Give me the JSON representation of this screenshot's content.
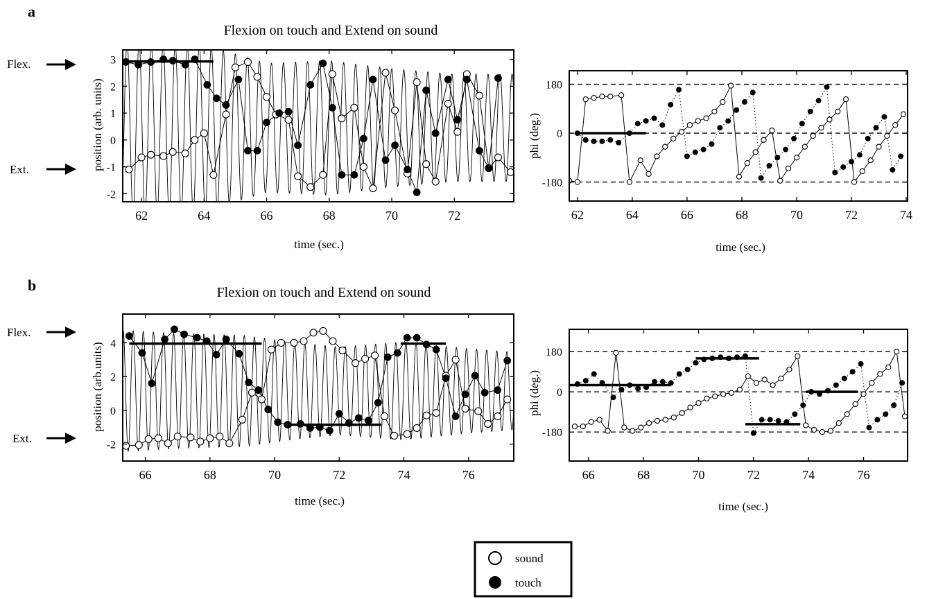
{
  "figure": {
    "panels": [
      {
        "label": "a",
        "title": "Flexion on touch and Extend on sound",
        "flex_label": "Flex.",
        "ext_label": "Ext.",
        "position_plot": {
          "ylabel": "position (arb. units)",
          "xlabel": "time (sec.)",
          "xlim": [
            61.4,
            73.9
          ],
          "ylim": [
            -2.3,
            3.35
          ],
          "xticks": [
            62,
            64,
            66,
            68,
            70,
            72
          ],
          "yticks": [
            -2,
            -1,
            0,
            1,
            2,
            3
          ]
        },
        "phase_plot": {
          "ylabel": "phi (deg.)",
          "xlabel": "time (sec.)",
          "xlim": [
            61.7,
            74.05
          ],
          "ylim": [
            -250,
            230
          ],
          "xticks": [
            62,
            64,
            66,
            68,
            70,
            72,
            74
          ],
          "yticks": [
            -180,
            0,
            180
          ]
        }
      },
      {
        "label": "b",
        "title": "Flexion on touch and Extend on sound",
        "flex_label": "Flex.",
        "ext_label": "Ext.",
        "position_plot": {
          "ylabel": "position (arb.units)",
          "xlabel": "time (sec.)",
          "xlim": [
            65.3,
            77.4
          ],
          "ylim": [
            -3.0,
            5.7
          ],
          "xticks": [
            66,
            68,
            70,
            72,
            74,
            76
          ],
          "yticks": [
            -2,
            0,
            2,
            4
          ]
        },
        "phase_plot": {
          "ylabel": "phi (deg.)",
          "xlabel": "time (sec.)",
          "xlim": [
            65.3,
            77.6
          ],
          "ylim": [
            -310,
            280
          ],
          "xticks": [
            66,
            68,
            70,
            72,
            74,
            76
          ],
          "yticks": [
            -180,
            0,
            180
          ]
        }
      }
    ],
    "legend": {
      "sound": "sound",
      "touch": "touch"
    }
  },
  "chart_data": [
    {
      "type": "line",
      "panel": "a-position",
      "xlabel": "time (sec.)",
      "ylabel": "position (arb. units)",
      "xlim": [
        61.4,
        73.9
      ],
      "ylim": [
        -2.3,
        3.35
      ],
      "continuous_trace": {
        "freq_hz": 2.6,
        "amplitude": [
          [
            61.4,
            3.2
          ],
          [
            64.0,
            3.1
          ],
          [
            66.0,
            2.4
          ],
          [
            68.0,
            2.5
          ],
          [
            70.0,
            2.2
          ],
          [
            72.0,
            2.0
          ],
          [
            73.9,
            2.0
          ]
        ],
        "offset": 0.45
      },
      "series": [
        {
          "name": "sound",
          "marker": "open-circle",
          "line": "solid",
          "x": [
            61.6,
            62.0,
            62.3,
            62.7,
            63.0,
            63.4,
            63.7,
            64.0,
            64.3,
            64.7,
            65.0,
            65.4,
            65.7,
            66.0,
            66.3,
            66.7,
            67.0,
            67.4,
            67.8,
            68.1,
            68.4,
            68.8,
            69.1,
            69.4,
            69.8,
            70.1,
            70.5,
            70.8,
            71.1,
            71.4,
            71.8,
            72.1,
            72.4,
            72.8,
            73.1,
            73.4,
            73.8
          ],
          "y": [
            -1.1,
            -0.65,
            -0.55,
            -0.6,
            -0.45,
            -0.5,
            0.0,
            0.25,
            -1.3,
            0.95,
            2.7,
            2.9,
            2.35,
            1.6,
            0.95,
            0.75,
            -1.35,
            -1.75,
            -1.3,
            2.45,
            0.8,
            1.2,
            -1.0,
            -1.8,
            2.5,
            1.1,
            -1.25,
            2.15,
            -0.9,
            -1.55,
            1.35,
            0.3,
            2.45,
            1.65,
            -1.05,
            -0.65,
            -1.2
          ]
        },
        {
          "name": "touch",
          "marker": "filled-circle",
          "line": "solid",
          "x": [
            61.5,
            61.9,
            62.3,
            62.7,
            63.0,
            63.4,
            63.7,
            64.1,
            64.4,
            64.7,
            65.1,
            65.4,
            65.7,
            66.0,
            66.4,
            66.7,
            67.0,
            67.4,
            67.8,
            68.1,
            68.4,
            68.8,
            69.1,
            69.4,
            69.8,
            70.1,
            70.5,
            70.8,
            71.1,
            71.4,
            71.8,
            72.1,
            72.4,
            72.8,
            73.1,
            73.4
          ],
          "y": [
            2.9,
            2.8,
            2.9,
            3.0,
            2.95,
            2.8,
            3.0,
            2.05,
            1.55,
            1.3,
            2.25,
            -0.4,
            -0.4,
            0.65,
            1.0,
            1.05,
            -0.2,
            2.05,
            2.85,
            1.2,
            -1.3,
            -1.3,
            0.05,
            2.25,
            -0.75,
            -0.2,
            -1.1,
            -1.95,
            1.85,
            0.25,
            2.25,
            0.75,
            2.25,
            -0.4,
            -1.05,
            2.3
          ]
        }
      ],
      "hlines": [
        {
          "y": 2.92,
          "x": [
            61.5,
            64.3
          ]
        }
      ]
    },
    {
      "type": "line",
      "panel": "a-phase",
      "xlabel": "time (sec.)",
      "ylabel": "phi (deg.)",
      "xlim": [
        61.7,
        74.05
      ],
      "ylim": [
        -250,
        230
      ],
      "reference_lines": [
        180,
        0,
        -180
      ],
      "series": [
        {
          "name": "sound",
          "marker": "open-circle",
          "line": "solid",
          "x": [
            61.7,
            62.0,
            62.3,
            62.6,
            62.9,
            63.2,
            63.6,
            63.9,
            64.3,
            64.6,
            64.9,
            65.2,
            65.5,
            65.8,
            66.1,
            66.4,
            66.7,
            67.0,
            67.3,
            67.6,
            67.9,
            68.2,
            68.5,
            68.8,
            69.1,
            69.4,
            69.7,
            70.0,
            70.3,
            70.6,
            70.9,
            71.2,
            71.5,
            71.8,
            72.1,
            72.4,
            72.7,
            73.0,
            73.3,
            73.6,
            73.9
          ],
          "y": [
            -175,
            -180,
            125,
            130,
            135,
            135,
            140,
            -180,
            -100,
            -150,
            -85,
            -50,
            -20,
            5,
            30,
            45,
            55,
            80,
            115,
            175,
            -160,
            -110,
            -70,
            -25,
            10,
            -175,
            -130,
            -90,
            -50,
            -10,
            20,
            50,
            80,
            125,
            -180,
            -140,
            -100,
            -50,
            -10,
            30,
            70
          ]
        },
        {
          "name": "touch",
          "marker": "filled-circle",
          "line": "dotted",
          "x": [
            62.0,
            62.3,
            62.6,
            62.9,
            63.2,
            63.5,
            63.9,
            64.2,
            64.5,
            64.8,
            65.1,
            65.4,
            65.7,
            66.0,
            66.3,
            66.6,
            66.9,
            67.2,
            67.5,
            67.8,
            68.1,
            68.4,
            68.7,
            69.0,
            69.3,
            69.6,
            69.9,
            70.2,
            70.5,
            70.8,
            71.1,
            71.4,
            71.7,
            72.0,
            72.3,
            72.6,
            72.9,
            73.2,
            73.5,
            73.8
          ],
          "y": [
            0,
            -25,
            -30,
            -30,
            -25,
            -35,
            0,
            35,
            45,
            55,
            30,
            105,
            160,
            -85,
            -70,
            -60,
            -40,
            20,
            45,
            85,
            115,
            150,
            -165,
            -120,
            -90,
            -60,
            -20,
            35,
            80,
            120,
            170,
            -145,
            -125,
            -105,
            -80,
            -20,
            20,
            60,
            -135,
            -85
          ]
        }
      ],
      "hlines": [
        {
          "y": 0,
          "x": [
            61.9,
            64.5
          ]
        }
      ]
    },
    {
      "type": "line",
      "panel": "b-position",
      "xlabel": "time (sec.)",
      "ylabel": "position (arb.units)",
      "xlim": [
        65.3,
        77.4
      ],
      "ylim": [
        -3.0,
        5.7
      ],
      "continuous_trace": {
        "freq_hz": 3.2,
        "amplitude": [
          [
            65.3,
            3.6
          ],
          [
            67.0,
            3.4
          ],
          [
            69.0,
            3.3
          ],
          [
            70.5,
            2.9
          ],
          [
            72.0,
            2.6
          ],
          [
            74.0,
            2.9
          ],
          [
            76.0,
            2.5
          ],
          [
            77.4,
            2.3
          ]
        ],
        "offset": 1.15
      },
      "series": [
        {
          "name": "sound",
          "marker": "open-circle",
          "line": "solid",
          "x": [
            65.4,
            65.8,
            66.1,
            66.4,
            66.7,
            67.0,
            67.4,
            67.7,
            68.0,
            68.3,
            68.6,
            69.0,
            69.3,
            69.6,
            69.9,
            70.2,
            70.6,
            70.9,
            71.2,
            71.5,
            71.8,
            72.1,
            72.5,
            72.8,
            73.1,
            73.4,
            73.7,
            74.1,
            74.4,
            74.7,
            75.0,
            75.3,
            75.6,
            75.9,
            76.3,
            76.6,
            76.9,
            77.2
          ],
          "y": [
            -2.1,
            -2.05,
            -1.7,
            -1.65,
            -1.95,
            -1.55,
            -1.6,
            -1.85,
            -1.65,
            -1.55,
            -1.95,
            -0.55,
            1.05,
            0.65,
            3.6,
            4.0,
            4.0,
            4.1,
            4.6,
            4.7,
            4.1,
            3.55,
            2.8,
            3.05,
            3.25,
            -0.35,
            -1.5,
            -1.4,
            -1.05,
            -0.3,
            -0.15,
            2.05,
            3.0,
            0.1,
            -0.05,
            -0.8,
            -0.35,
            0.65
          ]
        },
        {
          "name": "touch",
          "marker": "filled-circle",
          "line": "solid",
          "x": [
            65.5,
            65.9,
            66.2,
            66.6,
            66.9,
            67.2,
            67.6,
            67.9,
            68.2,
            68.5,
            68.9,
            69.2,
            69.5,
            69.8,
            70.1,
            70.4,
            70.8,
            71.1,
            71.4,
            71.7,
            72.0,
            72.3,
            72.6,
            72.9,
            73.2,
            73.5,
            73.8,
            74.1,
            74.4,
            74.7,
            75.0,
            75.3,
            75.6,
            75.9,
            76.2,
            76.5,
            76.9,
            77.2
          ],
          "y": [
            4.4,
            3.4,
            1.6,
            4.2,
            4.8,
            4.5,
            4.3,
            4.1,
            3.3,
            4.2,
            3.35,
            1.65,
            1.2,
            0.05,
            -0.7,
            -0.85,
            -0.8,
            -1.05,
            -1.0,
            -1.2,
            -0.2,
            -0.75,
            -0.45,
            -0.6,
            0.45,
            3.15,
            3.4,
            4.3,
            4.3,
            3.9,
            3.6,
            1.9,
            -0.35,
            0.95,
            2.05,
            1.05,
            1.2,
            2.95
          ]
        }
      ],
      "hlines": [
        {
          "y": 3.95,
          "x": [
            65.5,
            69.6
          ]
        },
        {
          "y": -0.85,
          "x": [
            70.4,
            73.3
          ]
        },
        {
          "y": 3.95,
          "x": [
            73.9,
            75.3
          ]
        }
      ]
    },
    {
      "type": "line",
      "panel": "b-phase",
      "xlabel": "time (sec.)",
      "ylabel": "phi (deg.)",
      "xlim": [
        65.3,
        77.6
      ],
      "ylim": [
        -310,
        280
      ],
      "reference_lines": [
        180,
        0,
        -180
      ],
      "series": [
        {
          "name": "sound",
          "marker": "open-circle",
          "line": "solid",
          "x": [
            65.5,
            65.8,
            66.1,
            66.4,
            66.7,
            67.0,
            67.3,
            67.6,
            67.9,
            68.2,
            68.5,
            68.8,
            69.1,
            69.4,
            69.7,
            70.0,
            70.3,
            70.6,
            70.9,
            71.2,
            71.5,
            71.8,
            72.1,
            72.4,
            72.7,
            73.0,
            73.3,
            73.6,
            73.9,
            74.2,
            74.5,
            74.8,
            75.1,
            75.4,
            75.7,
            76.0,
            76.3,
            76.6,
            76.9,
            77.2,
            77.5
          ],
          "y": [
            -155,
            -155,
            -135,
            -125,
            -175,
            175,
            -160,
            -175,
            -160,
            -140,
            -130,
            -125,
            -115,
            -95,
            -70,
            -50,
            -30,
            -20,
            -10,
            -5,
            10,
            70,
            40,
            55,
            30,
            60,
            100,
            160,
            -150,
            -170,
            -180,
            -175,
            -140,
            -100,
            -55,
            -10,
            40,
            80,
            110,
            180,
            -110
          ]
        },
        {
          "name": "touch",
          "marker": "filled-circle",
          "line": "dotted",
          "x": [
            65.6,
            65.9,
            66.2,
            66.5,
            66.9,
            67.2,
            67.5,
            67.8,
            68.1,
            68.4,
            68.7,
            69.0,
            69.3,
            69.6,
            69.9,
            70.2,
            70.5,
            70.8,
            71.1,
            71.4,
            71.7,
            72.0,
            72.3,
            72.6,
            72.9,
            73.2,
            73.5,
            73.8,
            74.1,
            74.4,
            74.7,
            75.0,
            75.3,
            75.6,
            75.9,
            76.2,
            76.5,
            76.8,
            77.1,
            77.4
          ],
          "y": [
            35,
            50,
            80,
            40,
            -25,
            10,
            30,
            15,
            20,
            45,
            45,
            40,
            80,
            100,
            130,
            145,
            150,
            155,
            150,
            155,
            160,
            -185,
            -125,
            -125,
            -130,
            -135,
            -100,
            -60,
            0,
            -10,
            5,
            30,
            60,
            90,
            125,
            -160,
            -125,
            -100,
            -60,
            40
          ]
        }
      ],
      "hlines": [
        {
          "y": 30,
          "x": [
            65.3,
            69.0
          ]
        },
        {
          "y": 150,
          "x": [
            69.9,
            72.2
          ]
        },
        {
          "y": -145,
          "x": [
            71.7,
            73.7
          ]
        },
        {
          "y": 0,
          "x": [
            73.9,
            75.8
          ]
        }
      ]
    }
  ]
}
